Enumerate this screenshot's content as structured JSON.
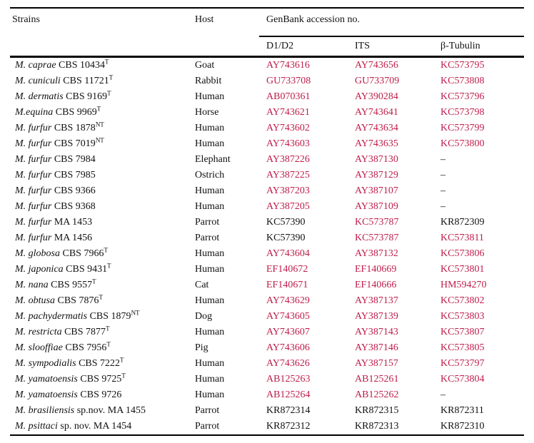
{
  "colors": {
    "link_red": "#be1e4b",
    "text_black": "#111111",
    "rule": "#000000",
    "background": "#ffffff"
  },
  "table": {
    "columns": {
      "strains": "Strains",
      "host": "Host",
      "genbank_group": "GenBank accession no.",
      "sub": [
        "D1/D2",
        "ITS",
        "β-Tubulin"
      ]
    },
    "missing_symbol": "–",
    "rows": [
      {
        "species": "M. caprae",
        "strain": "CBS 10434",
        "sup": "T",
        "host": "Goat",
        "d1d2": {
          "v": "AY743616",
          "link": true
        },
        "its": {
          "v": "AY743656",
          "link": true
        },
        "tubulin": {
          "v": "KC573795",
          "link": true
        }
      },
      {
        "species": "M. cuniculi",
        "strain": "CBS 11721",
        "sup": "T",
        "host": "Rabbit",
        "d1d2": {
          "v": "GU733708",
          "link": true
        },
        "its": {
          "v": "GU733709",
          "link": true
        },
        "tubulin": {
          "v": "KC573808",
          "link": true
        }
      },
      {
        "species": "M. dermatis",
        "strain": "CBS 9169",
        "sup": "T",
        "host": "Human",
        "d1d2": {
          "v": "AB070361",
          "link": true
        },
        "its": {
          "v": "AY390284",
          "link": true
        },
        "tubulin": {
          "v": "KC573796",
          "link": true
        }
      },
      {
        "species": "M.equina",
        "strain": "CBS 9969",
        "sup": "T",
        "host": "Horse",
        "d1d2": {
          "v": "AY743621",
          "link": true
        },
        "its": {
          "v": "AY743641",
          "link": true
        },
        "tubulin": {
          "v": "KC573798",
          "link": true
        }
      },
      {
        "species": "M. furfur",
        "strain": "CBS 1878",
        "sup": "NT",
        "host": "Human",
        "d1d2": {
          "v": "AY743602",
          "link": true
        },
        "its": {
          "v": "AY743634",
          "link": true
        },
        "tubulin": {
          "v": "KC573799",
          "link": true
        }
      },
      {
        "species": "M. furfur",
        "strain": "CBS 7019",
        "sup": "NT",
        "host": "Human",
        "d1d2": {
          "v": "AY743603",
          "link": true
        },
        "its": {
          "v": "AY743635",
          "link": true
        },
        "tubulin": {
          "v": "KC573800",
          "link": true
        }
      },
      {
        "species": "M. furfur",
        "strain": "CBS 7984",
        "sup": "",
        "host": "Elephant",
        "d1d2": {
          "v": "AY387226",
          "link": true
        },
        "its": {
          "v": "AY387130",
          "link": true
        },
        "tubulin": {
          "v": "–",
          "link": false
        }
      },
      {
        "species": "M. furfur",
        "strain": "CBS 7985",
        "sup": "",
        "host": "Ostrich",
        "d1d2": {
          "v": "AY387225",
          "link": true
        },
        "its": {
          "v": "AY387129",
          "link": true
        },
        "tubulin": {
          "v": "–",
          "link": false
        }
      },
      {
        "species": "M. furfur",
        "strain": "CBS 9366",
        "sup": "",
        "host": "Human",
        "d1d2": {
          "v": "AY387203",
          "link": true
        },
        "its": {
          "v": "AY387107",
          "link": true
        },
        "tubulin": {
          "v": "–",
          "link": false
        }
      },
      {
        "species": "M. furfur",
        "strain": "CBS 9368",
        "sup": "",
        "host": "Human",
        "d1d2": {
          "v": "AY387205",
          "link": true
        },
        "its": {
          "v": "AY387109",
          "link": true
        },
        "tubulin": {
          "v": "–",
          "link": false
        }
      },
      {
        "species": "M. furfur",
        "strain": "MA 1453",
        "sup": "",
        "host": "Parrot",
        "d1d2": {
          "v": "KC57390",
          "link": false
        },
        "its": {
          "v": "KC573787",
          "link": true
        },
        "tubulin": {
          "v": "KR872309",
          "link": false
        }
      },
      {
        "species": "M. furfur",
        "strain": "MA 1456",
        "sup": "",
        "host": "Parrot",
        "d1d2": {
          "v": "KC57390",
          "link": false
        },
        "its": {
          "v": "KC573787",
          "link": true
        },
        "tubulin": {
          "v": "KC573811",
          "link": true
        }
      },
      {
        "species": "M. globosa",
        "strain": "CBS 7966",
        "sup": "T",
        "host": "Human",
        "d1d2": {
          "v": "AY743604",
          "link": true
        },
        "its": {
          "v": "AY387132",
          "link": true
        },
        "tubulin": {
          "v": "KC573806",
          "link": true
        }
      },
      {
        "species": "M. japonica",
        "strain": "CBS 9431",
        "sup": "T",
        "host": "Human",
        "d1d2": {
          "v": "EF140672",
          "link": true
        },
        "its": {
          "v": "EF140669",
          "link": true
        },
        "tubulin": {
          "v": "KC573801",
          "link": true
        }
      },
      {
        "species": "M. nana",
        "strain": "CBS 9557",
        "sup": "T",
        "host": "Cat",
        "d1d2": {
          "v": "EF140671",
          "link": true
        },
        "its": {
          "v": "EF140666",
          "link": true
        },
        "tubulin": {
          "v": "HM594270",
          "link": true
        }
      },
      {
        "species": "M. obtusa",
        "strain": "CBS 7876",
        "sup": "T",
        "host": "Human",
        "d1d2": {
          "v": "AY743629",
          "link": true
        },
        "its": {
          "v": "AY387137",
          "link": true
        },
        "tubulin": {
          "v": "KC573802",
          "link": true
        }
      },
      {
        "species": "M. pachydermatis",
        "strain": "CBS 1879",
        "sup": "NT",
        "host": "Dog",
        "d1d2": {
          "v": "AY743605",
          "link": true
        },
        "its": {
          "v": "AY387139",
          "link": true
        },
        "tubulin": {
          "v": "KC573803",
          "link": true
        }
      },
      {
        "species": "M. restricta",
        "strain": "CBS 7877",
        "sup": "T",
        "host": "Human",
        "d1d2": {
          "v": "AY743607",
          "link": true
        },
        "its": {
          "v": "AY387143",
          "link": true
        },
        "tubulin": {
          "v": "KC573807",
          "link": true
        }
      },
      {
        "species": "M. slooffiae",
        "strain": "CBS 7956",
        "sup": "T",
        "host": "Pig",
        "d1d2": {
          "v": "AY743606",
          "link": true
        },
        "its": {
          "v": "AY387146",
          "link": true
        },
        "tubulin": {
          "v": "KC573805",
          "link": true
        }
      },
      {
        "species": "M. sympodialis",
        "strain": "CBS 7222",
        "sup": "T",
        "host": "Human",
        "d1d2": {
          "v": "AY743626",
          "link": true
        },
        "its": {
          "v": "AY387157",
          "link": true
        },
        "tubulin": {
          "v": "KC573797",
          "link": true
        }
      },
      {
        "species": "M. yamatoensis",
        "strain": "CBS 9725",
        "sup": "T",
        "host": "Human",
        "d1d2": {
          "v": "AB125263",
          "link": true
        },
        "its": {
          "v": "AB125261",
          "link": true
        },
        "tubulin": {
          "v": "KC573804",
          "link": true
        }
      },
      {
        "species": "M. yamatoensis",
        "strain": "CBS 9726",
        "sup": "",
        "host": "Human",
        "d1d2": {
          "v": "AB125264",
          "link": true
        },
        "its": {
          "v": "AB125262",
          "link": true
        },
        "tubulin": {
          "v": "–",
          "link": false
        }
      },
      {
        "species": "M. brasiliensis",
        "strain": "sp.nov. MA 1455",
        "sup": "",
        "host": "Parrot",
        "d1d2": {
          "v": "KR872314",
          "link": false
        },
        "its": {
          "v": "KR872315",
          "link": false
        },
        "tubulin": {
          "v": "KR872311",
          "link": false
        }
      },
      {
        "species": "M. psittaci",
        "strain": "sp. nov. MA 1454",
        "sup": "",
        "host": "Parrot",
        "d1d2": {
          "v": "KR872312",
          "link": false
        },
        "its": {
          "v": "KR872313",
          "link": false
        },
        "tubulin": {
          "v": "KR872310",
          "link": false
        }
      }
    ]
  }
}
